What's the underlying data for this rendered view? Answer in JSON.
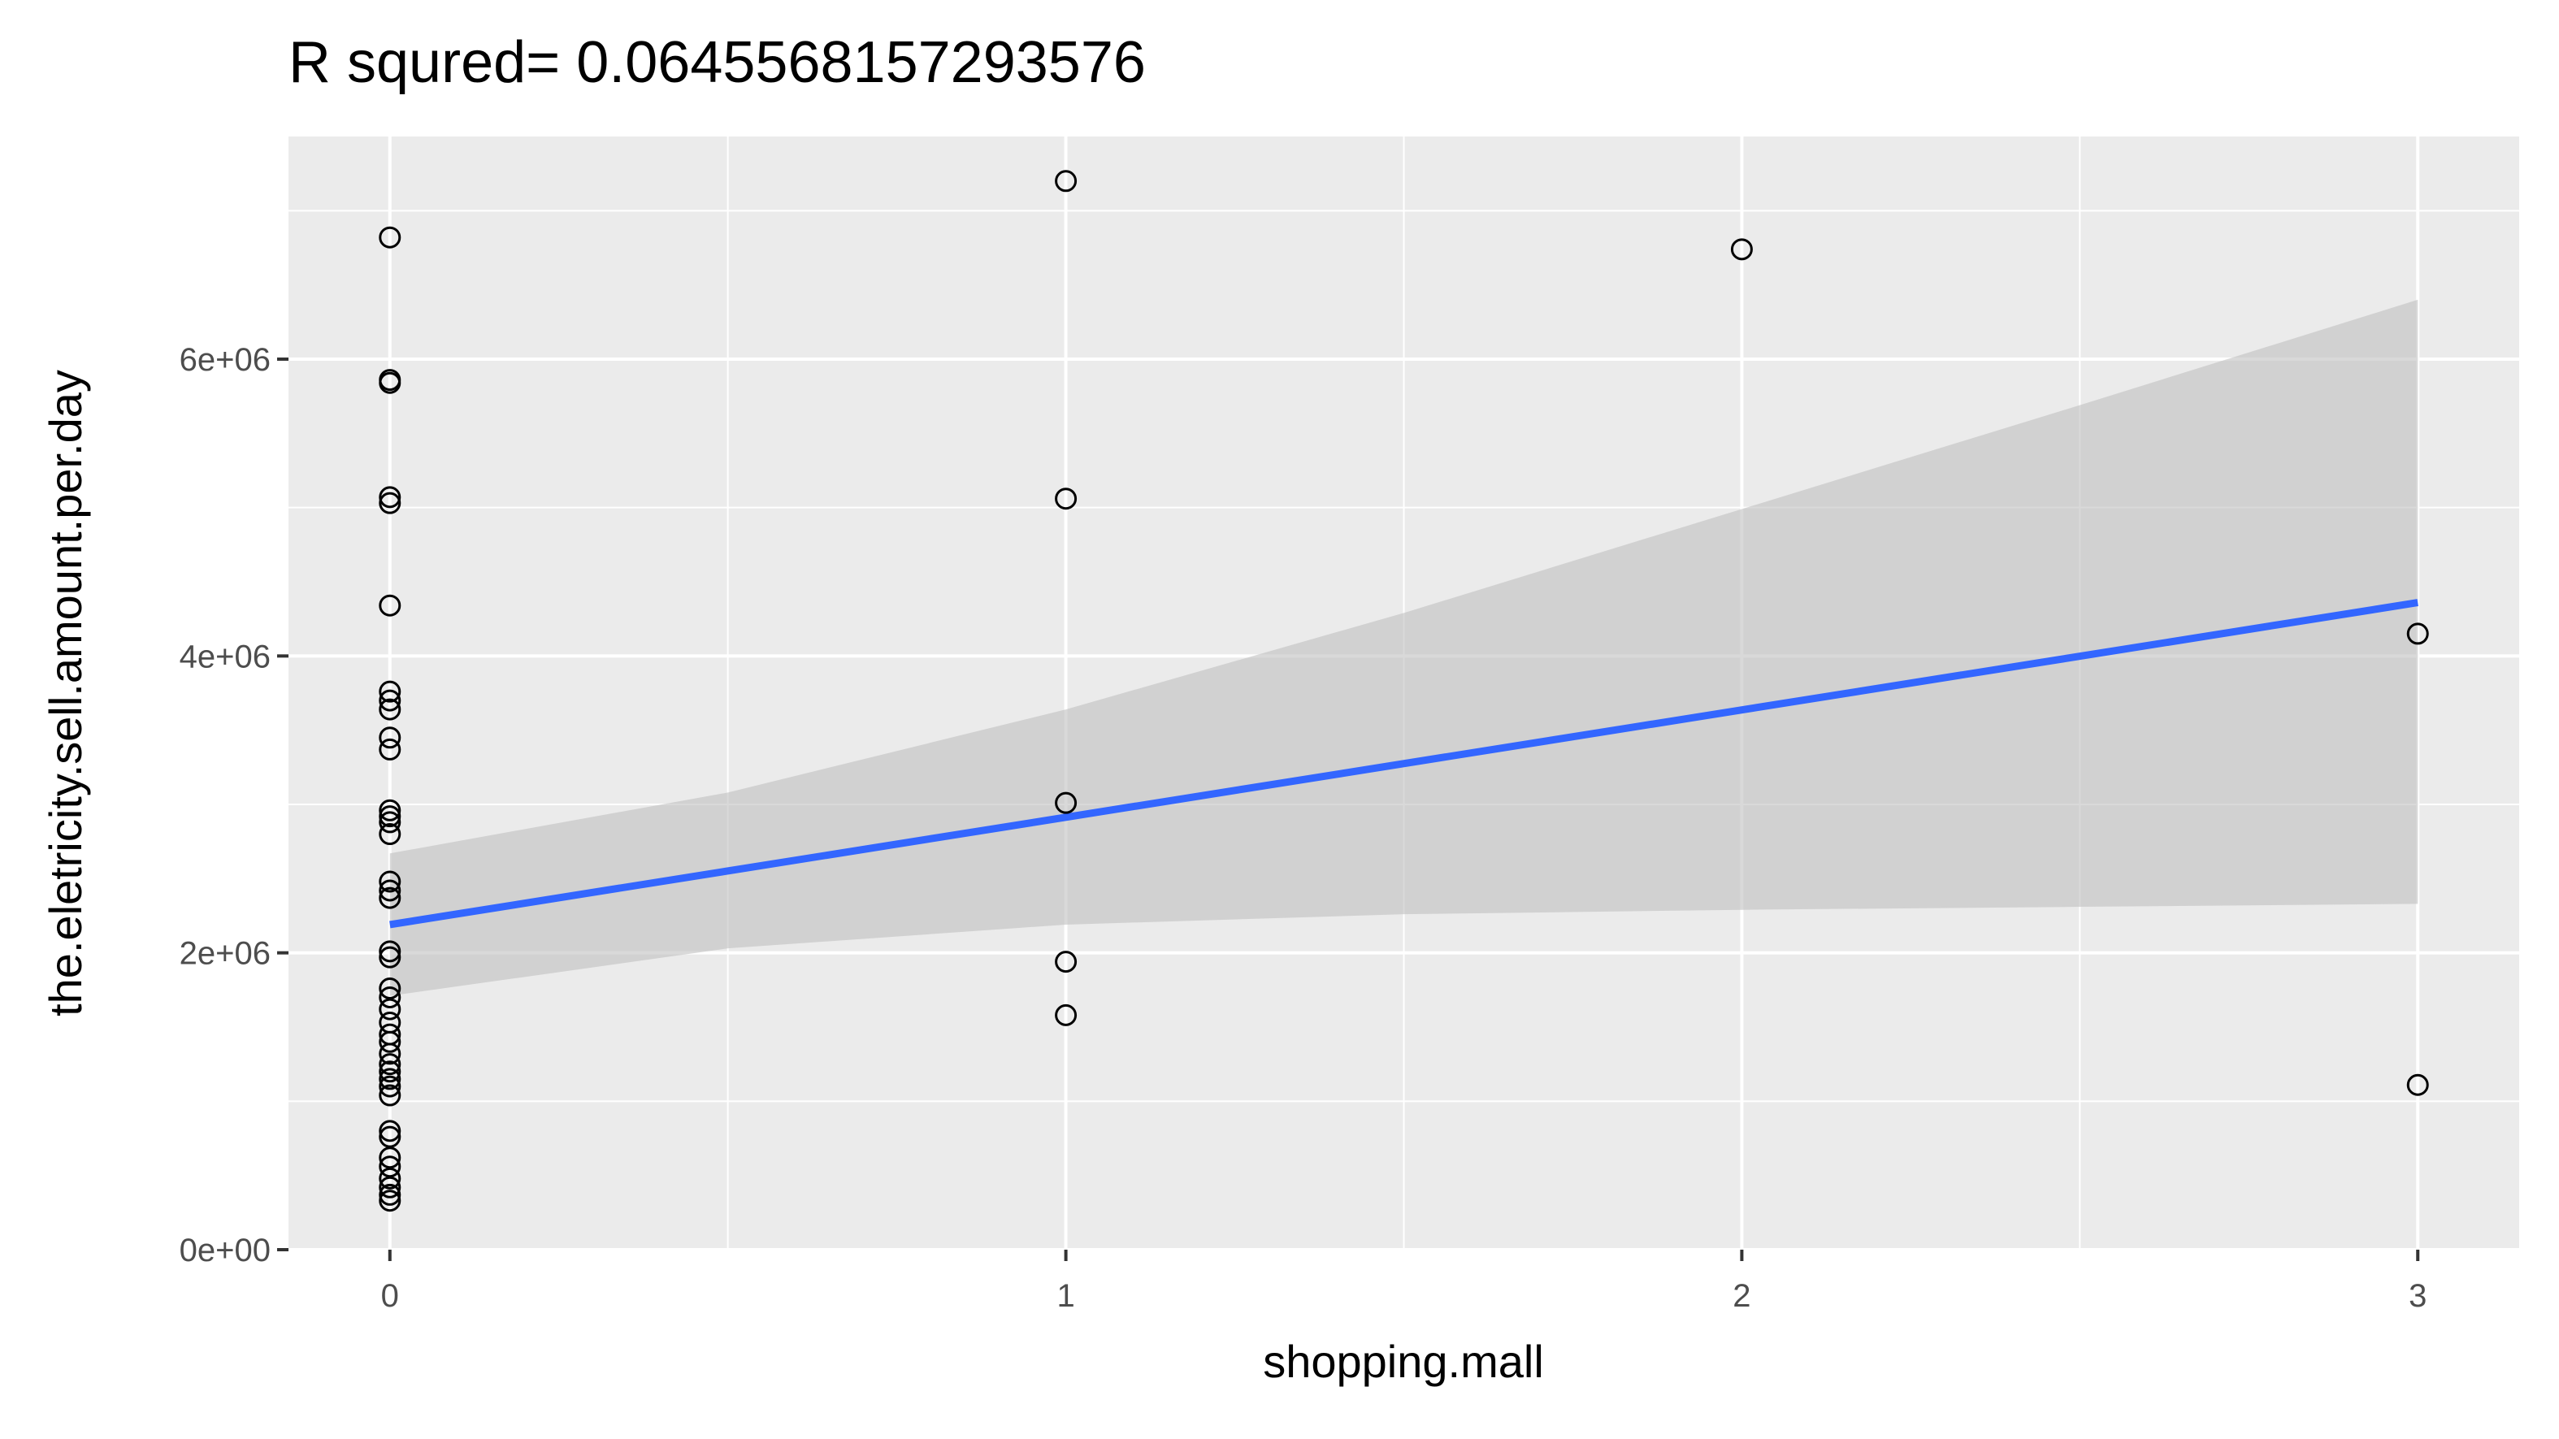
{
  "chart_data": {
    "type": "scatter",
    "title": "R squred= 0.0645568157293576",
    "xlabel": "shopping.mall",
    "ylabel": "the.eletricity.sell.amount.per.day",
    "xlim": [
      -0.15,
      3.15
    ],
    "ylim": [
      0,
      7500000
    ],
    "x_ticks": [
      0,
      1,
      2,
      3
    ],
    "x_tick_labels": [
      "0",
      "1",
      "2",
      "3"
    ],
    "x_minor_ticks": [
      0.5,
      1.5,
      2.5
    ],
    "y_ticks": [
      0,
      2000000,
      4000000,
      6000000
    ],
    "y_tick_labels": [
      "0e+00",
      "2e+06",
      "4e+06",
      "6e+06"
    ],
    "y_minor_ticks": [
      1000000,
      3000000,
      5000000,
      7000000
    ],
    "grid": true,
    "legend": "none",
    "colors": {
      "panel_background": "#ebebeb",
      "grid_line": "#ffffff",
      "regression_line": "#3366ff",
      "confidence_band": "#c0c0c0",
      "point_stroke": "#000000"
    },
    "points": [
      {
        "x": 0,
        "y": 6820000
      },
      {
        "x": 0,
        "y": 5860000
      },
      {
        "x": 0,
        "y": 5840000
      },
      {
        "x": 0,
        "y": 5070000
      },
      {
        "x": 0,
        "y": 5030000
      },
      {
        "x": 0,
        "y": 4340000
      },
      {
        "x": 0,
        "y": 3760000
      },
      {
        "x": 0,
        "y": 3700000
      },
      {
        "x": 0,
        "y": 3640000
      },
      {
        "x": 0,
        "y": 3450000
      },
      {
        "x": 0,
        "y": 3370000
      },
      {
        "x": 0,
        "y": 2960000
      },
      {
        "x": 0,
        "y": 2920000
      },
      {
        "x": 0,
        "y": 2880000
      },
      {
        "x": 0,
        "y": 2800000
      },
      {
        "x": 0,
        "y": 2480000
      },
      {
        "x": 0,
        "y": 2420000
      },
      {
        "x": 0,
        "y": 2370000
      },
      {
        "x": 0,
        "y": 2010000
      },
      {
        "x": 0,
        "y": 1970000
      },
      {
        "x": 0,
        "y": 1760000
      },
      {
        "x": 0,
        "y": 1700000
      },
      {
        "x": 0,
        "y": 1620000
      },
      {
        "x": 0,
        "y": 1530000
      },
      {
        "x": 0,
        "y": 1450000
      },
      {
        "x": 0,
        "y": 1400000
      },
      {
        "x": 0,
        "y": 1320000
      },
      {
        "x": 0,
        "y": 1250000
      },
      {
        "x": 0,
        "y": 1200000
      },
      {
        "x": 0,
        "y": 1150000
      },
      {
        "x": 0,
        "y": 1100000
      },
      {
        "x": 0,
        "y": 1040000
      },
      {
        "x": 0,
        "y": 800000
      },
      {
        "x": 0,
        "y": 760000
      },
      {
        "x": 0,
        "y": 620000
      },
      {
        "x": 0,
        "y": 560000
      },
      {
        "x": 0,
        "y": 480000
      },
      {
        "x": 0,
        "y": 420000
      },
      {
        "x": 0,
        "y": 370000
      },
      {
        "x": 0,
        "y": 330000
      },
      {
        "x": 1,
        "y": 7200000
      },
      {
        "x": 1,
        "y": 5060000
      },
      {
        "x": 1,
        "y": 3010000
      },
      {
        "x": 1,
        "y": 1940000
      },
      {
        "x": 1,
        "y": 1580000
      },
      {
        "x": 2,
        "y": 6740000
      },
      {
        "x": 3,
        "y": 4150000
      },
      {
        "x": 3,
        "y": 1110000
      }
    ],
    "regression_line": {
      "x": [
        0,
        3
      ],
      "y": [
        2190000,
        4360000
      ]
    },
    "confidence_band": {
      "x": [
        0,
        0.5,
        1,
        1.5,
        2,
        2.5,
        3
      ],
      "upper": [
        2670000,
        3080000,
        3640000,
        4290000,
        4990000,
        5690000,
        6400000
      ],
      "lower": [
        1710000,
        2030000,
        2190000,
        2260000,
        2290000,
        2310000,
        2330000
      ]
    }
  }
}
